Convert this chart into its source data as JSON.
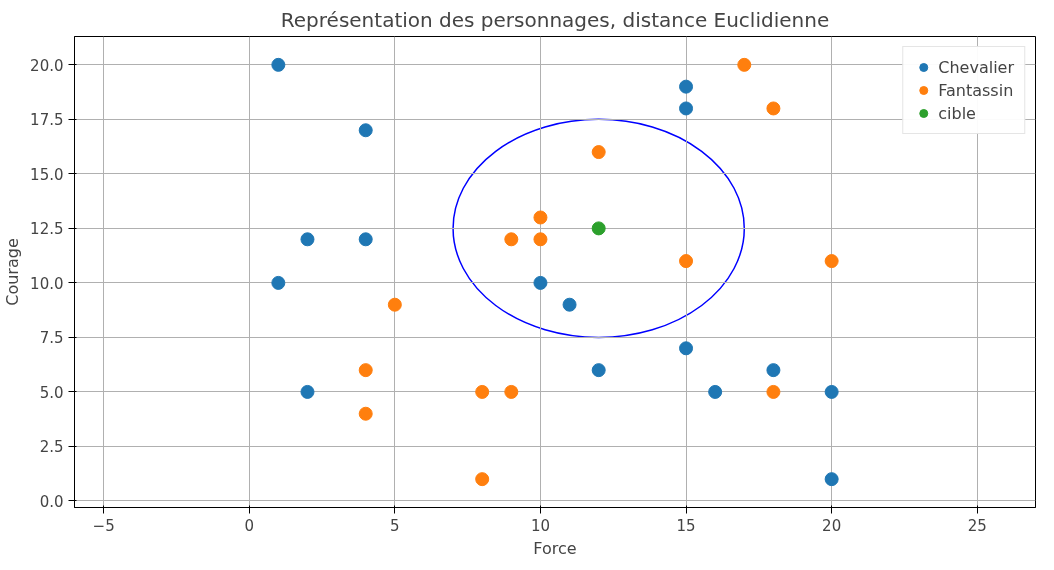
{
  "chart_data": {
    "type": "scatter",
    "title": "Représentation des personnages, distance Euclidienne",
    "xlabel": "Force",
    "ylabel": "Courage",
    "xlim": [
      -6,
      27
    ],
    "xticks": [
      -5,
      0,
      5,
      10,
      15,
      20,
      25
    ],
    "ylim": [
      -0.3,
      21.3
    ],
    "yticks": [
      {
        "value": 0,
        "label": "0.0"
      },
      {
        "value": 2.5,
        "label": "2.5"
      },
      {
        "value": 5,
        "label": "5.0"
      },
      {
        "value": 7.5,
        "label": "7.5"
      },
      {
        "value": 10,
        "label": "10.0"
      },
      {
        "value": 12.5,
        "label": "12.5"
      },
      {
        "value": 15,
        "label": "15.0"
      },
      {
        "value": 17.5,
        "label": "17.5"
      },
      {
        "value": 20,
        "label": "20.0"
      }
    ],
    "grid": true,
    "legend": "top right",
    "marker": "circle",
    "series": [
      {
        "name": "Chevalier",
        "color": "#1f77b4",
        "x": [
          1,
          15,
          15,
          4,
          2,
          4,
          1,
          10,
          11,
          15,
          12,
          18,
          2,
          16,
          20,
          20
        ],
        "values": [
          20,
          19,
          18,
          17,
          12,
          12,
          10,
          10,
          9,
          7,
          6,
          6,
          5,
          5,
          5,
          1
        ]
      },
      {
        "name": "Fantassin",
        "color": "#ff7f0e",
        "x": [
          17,
          18,
          12,
          10,
          9,
          10,
          15,
          20,
          5,
          4,
          4,
          8,
          9,
          18,
          8
        ],
        "values": [
          20,
          18,
          16,
          13,
          12,
          12,
          11,
          11,
          9,
          6,
          4,
          5,
          5,
          5,
          1
        ]
      },
      {
        "name": "cible",
        "color": "#2ca02c",
        "x": [
          12
        ],
        "values": [
          12.5
        ]
      }
    ]
  }
}
